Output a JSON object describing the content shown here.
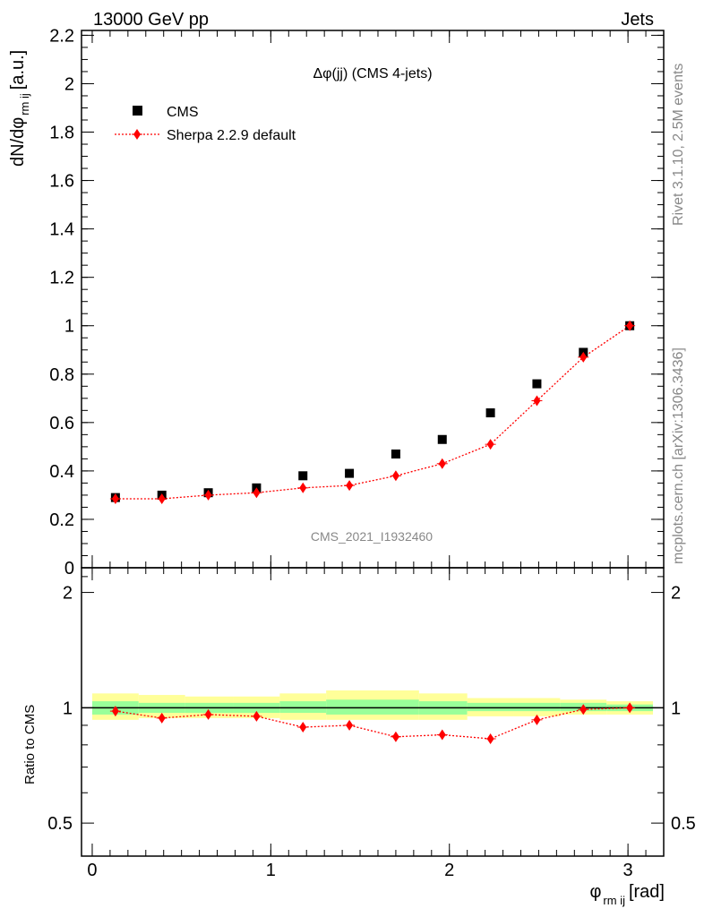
{
  "header": {
    "left": "13000 GeV pp",
    "right": "Jets"
  },
  "side_text": {
    "top": "Rivet 3.1.10,  2.5M events",
    "bottom": "mcplots.cern.ch [arXiv:1306.3436]"
  },
  "chart_data": {
    "type": "scatter",
    "title": "Δφ(jj) (CMS 4-jets)",
    "watermark": "CMS_2021_I1932460",
    "xlabel_main": "φ",
    "xlabel_sub": "rm ij",
    "xlabel_unit": "[rad]",
    "ylabel_main": "dN/dφ",
    "ylabel_sub": "rm ij",
    "ylabel_unit": "[a.u.]",
    "ratio_ylabel": "Ratio to CMS",
    "xlim": [
      -0.06,
      3.2
    ],
    "ylim": [
      0,
      2.22
    ],
    "ratio_ylim": [
      0.41,
      2.32
    ],
    "ratio_log": true,
    "x_ticks": [
      0,
      1,
      2,
      3
    ],
    "y_ticks": [
      "0",
      "0.2",
      "0.4",
      "0.6",
      "0.8",
      "1",
      "1.2",
      "1.4",
      "1.6",
      "1.8",
      "2",
      "2.2"
    ],
    "ratio_ticks": [
      "0.5",
      "1",
      "2"
    ],
    "legend_position": "top-left",
    "x": [
      0.13,
      0.39,
      0.65,
      0.92,
      1.18,
      1.44,
      1.7,
      1.96,
      2.23,
      2.49,
      2.75,
      3.01
    ],
    "series": [
      {
        "name": "CMS",
        "color": "#000000",
        "marker": "square",
        "values": [
          0.29,
          0.3,
          0.31,
          0.33,
          0.38,
          0.39,
          0.47,
          0.53,
          0.64,
          0.76,
          0.89,
          1.0
        ]
      },
      {
        "name": "Sherpa 2.2.9 default",
        "color": "#ff0000",
        "marker": "diamond",
        "line": "dotted",
        "values": [
          0.285,
          0.285,
          0.3,
          0.31,
          0.33,
          0.34,
          0.38,
          0.43,
          0.51,
          0.69,
          0.87,
          1.0
        ]
      }
    ],
    "ratio": [
      0.98,
      0.94,
      0.96,
      0.95,
      0.89,
      0.9,
      0.84,
      0.85,
      0.83,
      0.93,
      0.99,
      1.0
    ],
    "ratio_bands": {
      "edges": [
        0.0,
        0.26,
        0.52,
        0.79,
        1.05,
        1.31,
        1.57,
        1.83,
        2.1,
        2.36,
        2.62,
        2.88,
        3.14
      ],
      "inner_low": [
        0.96,
        0.97,
        0.97,
        0.97,
        0.97,
        0.96,
        0.96,
        0.96,
        0.98,
        0.98,
        0.98,
        0.98
      ],
      "inner_high": [
        1.04,
        1.03,
        1.03,
        1.03,
        1.04,
        1.05,
        1.05,
        1.04,
        1.03,
        1.03,
        1.03,
        1.02
      ],
      "outer_low": [
        0.93,
        0.94,
        0.94,
        0.94,
        0.93,
        0.93,
        0.93,
        0.93,
        0.95,
        0.95,
        0.96,
        0.96
      ],
      "outer_high": [
        1.09,
        1.08,
        1.07,
        1.07,
        1.09,
        1.11,
        1.11,
        1.09,
        1.06,
        1.06,
        1.05,
        1.04
      ],
      "inner_color": "#99ff99",
      "outer_color": "#ffff99"
    }
  }
}
